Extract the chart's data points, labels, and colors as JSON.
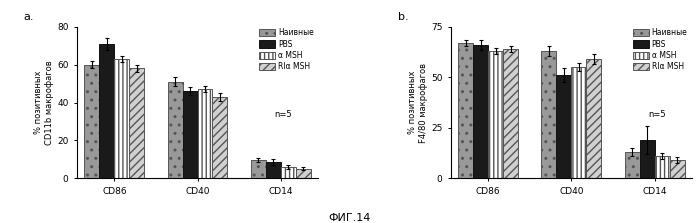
{
  "panel_a": {
    "title": "a.",
    "ylabel": "% позитивных\nCD11b макрофагов",
    "ylim": [
      0,
      80
    ],
    "yticks": [
      0,
      20,
      40,
      60,
      80
    ],
    "groups": [
      "CD86",
      "CD40",
      "CD14"
    ],
    "bars": {
      "Наивные": [
        60,
        51,
        9.5
      ],
      "PBS": [
        71,
        46,
        8.5
      ],
      "α MSH": [
        63,
        47,
        6.0
      ],
      "RIα MSH": [
        58,
        43,
        5.0
      ]
    },
    "errors": {
      "Наивные": [
        2.0,
        2.5,
        1.0
      ],
      "PBS": [
        3.0,
        2.0,
        1.5
      ],
      "α MSH": [
        1.5,
        1.5,
        1.0
      ],
      "RIα MSH": [
        2.0,
        2.0,
        0.8
      ]
    }
  },
  "panel_b": {
    "title": "b.",
    "ylabel": "% позитивных\nF4/80 макрофагов",
    "ylim": [
      0,
      75
    ],
    "yticks": [
      0,
      25,
      50,
      75
    ],
    "groups": [
      "CD86",
      "CD40",
      "CD14"
    ],
    "bars": {
      "Наивные": [
        67,
        63,
        13
      ],
      "PBS": [
        66,
        51,
        19
      ],
      "α MSH": [
        63,
        55,
        11
      ],
      "RIα MSH": [
        64,
        59,
        9
      ]
    },
    "errors": {
      "Наивные": [
        1.5,
        2.5,
        2.0
      ],
      "PBS": [
        2.5,
        3.5,
        7.0
      ],
      "α MSH": [
        1.5,
        2.0,
        1.5
      ],
      "RIα MSH": [
        1.5,
        2.5,
        1.5
      ]
    }
  },
  "legend_labels": [
    "Наивные",
    "PBS",
    "α MSH",
    "RIα MSH"
  ],
  "bar_colors": [
    "#999999",
    "#1a1a1a",
    "#ffffff",
    "#d0d0d0"
  ],
  "bar_hatches": [
    "..",
    null,
    "||||",
    "////"
  ],
  "bar_edgecolors": [
    "#555555",
    "#111111",
    "#555555",
    "#555555"
  ],
  "n_label": "n=5",
  "fig_label": "ФИГ.14",
  "bar_width": 0.18
}
